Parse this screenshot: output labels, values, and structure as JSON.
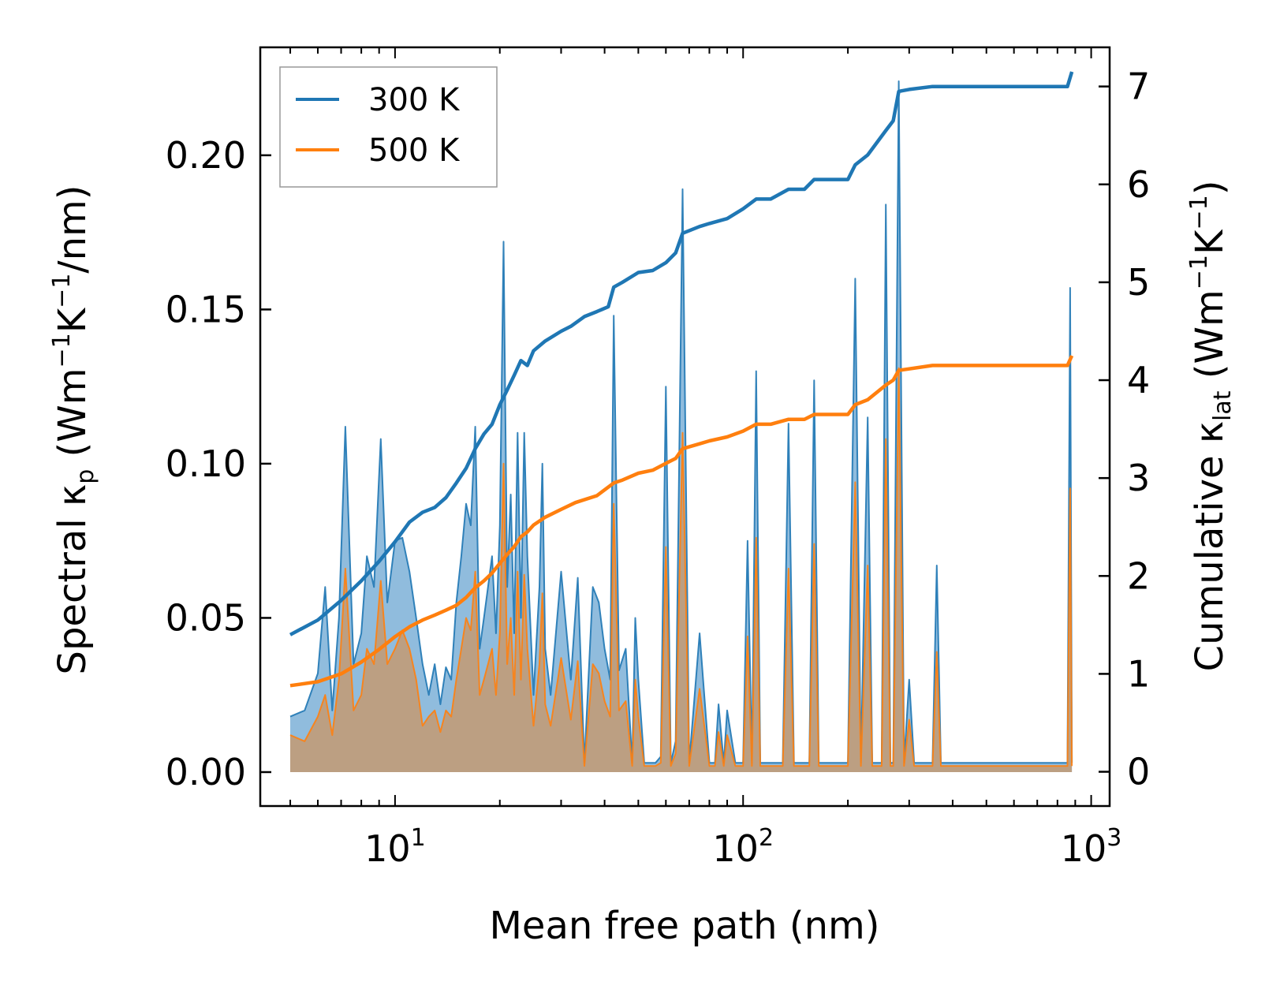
{
  "chart_data": {
    "type": "line",
    "title": "",
    "xlabel": "Mean free path (nm)",
    "xscale": "log",
    "xlim": [
      4.1,
      1130
    ],
    "x_ticks": [
      {
        "value": 10,
        "base": "10",
        "exp": "1"
      },
      {
        "value": 100,
        "base": "10",
        "exp": "2"
      },
      {
        "value": 1000,
        "base": "10",
        "exp": "3"
      }
    ],
    "ylabel_left": {
      "prefix": "Spectral κ",
      "sub": "p",
      "middle": " (Wm",
      "sup1": "−1",
      "k": "K",
      "sup2": "−1",
      "suffix": "/nm)"
    },
    "ylim_left": [
      -0.011,
      0.235
    ],
    "yticks_left": [
      "0.00",
      "0.05",
      "0.10",
      "0.15",
      "0.20"
    ],
    "ylabel_right": {
      "prefix": "Cumulative κ",
      "sub": "lat",
      "middle": " (Wm",
      "sup1": "−1",
      "k": "K",
      "sup2": "−1",
      "suffix": ")"
    },
    "ylim_right": [
      -0.35,
      7.4
    ],
    "yticks_right": [
      "0",
      "1",
      "2",
      "3",
      "4",
      "5",
      "6",
      "7"
    ],
    "legend": {
      "position": "top-left",
      "entries": [
        "300 K",
        "500 K"
      ]
    },
    "colors": {
      "300 K": "#1f77b4",
      "500 K": "#ff7f0e",
      "fill_300": "#8ab8db",
      "fill_500": "#c49a72"
    },
    "spectral": {
      "300 K": [
        [
          5,
          0.018
        ],
        [
          5.5,
          0.02
        ],
        [
          6,
          0.032
        ],
        [
          6.3,
          0.06
        ],
        [
          6.6,
          0.02
        ],
        [
          6.9,
          0.05
        ],
        [
          7.2,
          0.112
        ],
        [
          7.6,
          0.035
        ],
        [
          8,
          0.045
        ],
        [
          8.3,
          0.07
        ],
        [
          8.7,
          0.06
        ],
        [
          9.1,
          0.108
        ],
        [
          9.5,
          0.055
        ],
        [
          10,
          0.075
        ],
        [
          10.5,
          0.076
        ],
        [
          11,
          0.065
        ],
        [
          11.5,
          0.05
        ],
        [
          12,
          0.035
        ],
        [
          12.5,
          0.025
        ],
        [
          13,
          0.035
        ],
        [
          13.5,
          0.022
        ],
        [
          14,
          0.034
        ],
        [
          14.5,
          0.03
        ],
        [
          15,
          0.055
        ],
        [
          15.5,
          0.07
        ],
        [
          16,
          0.087
        ],
        [
          16.5,
          0.08
        ],
        [
          17,
          0.112
        ],
        [
          17.5,
          0.04
        ],
        [
          18,
          0.05
        ],
        [
          18.5,
          0.06
        ],
        [
          19,
          0.07
        ],
        [
          19.5,
          0.045
        ],
        [
          20,
          0.08
        ],
        [
          20.5,
          0.172
        ],
        [
          21,
          0.06
        ],
        [
          21.5,
          0.09
        ],
        [
          22,
          0.045
        ],
        [
          22.5,
          0.11
        ],
        [
          23,
          0.05
        ],
        [
          23.5,
          0.11
        ],
        [
          24,
          0.07
        ],
        [
          25,
          0.025
        ],
        [
          26,
          0.06
        ],
        [
          26.5,
          0.1
        ],
        [
          27,
          0.04
        ],
        [
          28,
          0.025
        ],
        [
          30,
          0.065
        ],
        [
          32,
          0.03
        ],
        [
          33.5,
          0.063
        ],
        [
          35,
          0.003
        ],
        [
          37,
          0.06
        ],
        [
          38.5,
          0.055
        ],
        [
          40,
          0.04
        ],
        [
          41.5,
          0.03
        ],
        [
          42.5,
          0.148
        ],
        [
          44,
          0.033
        ],
        [
          46,
          0.04
        ],
        [
          48,
          0.003
        ],
        [
          49,
          0.05
        ],
        [
          50,
          0.03
        ],
        [
          52,
          0.003
        ],
        [
          54,
          0.003
        ],
        [
          56,
          0.003
        ],
        [
          58,
          0.005
        ],
        [
          60,
          0.125
        ],
        [
          62,
          0.003
        ],
        [
          64,
          0.01
        ],
        [
          67,
          0.189
        ],
        [
          70,
          0.003
        ],
        [
          75,
          0.045
        ],
        [
          80,
          0.003
        ],
        [
          83,
          0.003
        ],
        [
          85,
          0.022
        ],
        [
          88,
          0.003
        ],
        [
          90,
          0.02
        ],
        [
          95,
          0.003
        ],
        [
          100,
          0.003
        ],
        [
          103,
          0.075
        ],
        [
          106,
          0.003
        ],
        [
          109,
          0.13
        ],
        [
          112,
          0.003
        ],
        [
          115,
          0.003
        ],
        [
          120,
          0.003
        ],
        [
          130,
          0.003
        ],
        [
          135,
          0.113
        ],
        [
          140,
          0.003
        ],
        [
          150,
          0.003
        ],
        [
          155,
          0.003
        ],
        [
          160,
          0.127
        ],
        [
          165,
          0.003
        ],
        [
          170,
          0.003
        ],
        [
          200,
          0.003
        ],
        [
          210,
          0.16
        ],
        [
          218,
          0.003
        ],
        [
          228,
          0.115
        ],
        [
          235,
          0.003
        ],
        [
          250,
          0.003
        ],
        [
          257,
          0.184
        ],
        [
          265,
          0.003
        ],
        [
          270,
          0.003
        ],
        [
          280,
          0.224
        ],
        [
          290,
          0.003
        ],
        [
          300,
          0.03
        ],
        [
          310,
          0.003
        ],
        [
          350,
          0.003
        ],
        [
          360,
          0.067
        ],
        [
          370,
          0.003
        ],
        [
          800,
          0.003
        ],
        [
          855,
          0.003
        ],
        [
          870,
          0.157
        ],
        [
          880,
          0.003
        ]
      ],
      "500 K": [
        [
          5,
          0.012
        ],
        [
          5.5,
          0.01
        ],
        [
          6,
          0.018
        ],
        [
          6.3,
          0.025
        ],
        [
          6.6,
          0.012
        ],
        [
          6.9,
          0.03
        ],
        [
          7.2,
          0.066
        ],
        [
          7.6,
          0.02
        ],
        [
          8,
          0.025
        ],
        [
          8.3,
          0.04
        ],
        [
          8.7,
          0.035
        ],
        [
          9.1,
          0.062
        ],
        [
          9.5,
          0.035
        ],
        [
          10,
          0.04
        ],
        [
          10.5,
          0.046
        ],
        [
          11,
          0.04
        ],
        [
          11.5,
          0.03
        ],
        [
          12,
          0.015
        ],
        [
          12.5,
          0.018
        ],
        [
          13,
          0.02
        ],
        [
          13.5,
          0.013
        ],
        [
          14,
          0.02
        ],
        [
          14.5,
          0.018
        ],
        [
          15,
          0.03
        ],
        [
          15.5,
          0.04
        ],
        [
          16,
          0.05
        ],
        [
          16.5,
          0.046
        ],
        [
          17,
          0.065
        ],
        [
          17.5,
          0.025
        ],
        [
          18,
          0.03
        ],
        [
          18.5,
          0.035
        ],
        [
          19,
          0.04
        ],
        [
          19.5,
          0.025
        ],
        [
          20,
          0.045
        ],
        [
          20.5,
          0.1
        ],
        [
          21,
          0.035
        ],
        [
          21.5,
          0.05
        ],
        [
          22,
          0.025
        ],
        [
          22.5,
          0.065
        ],
        [
          23,
          0.03
        ],
        [
          23.5,
          0.064
        ],
        [
          24,
          0.04
        ],
        [
          25,
          0.015
        ],
        [
          26,
          0.035
        ],
        [
          26.5,
          0.058
        ],
        [
          27,
          0.022
        ],
        [
          28,
          0.015
        ],
        [
          30,
          0.037
        ],
        [
          32,
          0.017
        ],
        [
          33.5,
          0.036
        ],
        [
          35,
          0.002
        ],
        [
          37,
          0.035
        ],
        [
          38.5,
          0.032
        ],
        [
          40,
          0.023
        ],
        [
          41.5,
          0.018
        ],
        [
          42.5,
          0.087
        ],
        [
          44,
          0.02
        ],
        [
          46,
          0.023
        ],
        [
          48,
          0.002
        ],
        [
          49,
          0.03
        ],
        [
          50,
          0.018
        ],
        [
          52,
          0.002
        ],
        [
          54,
          0.002
        ],
        [
          56,
          0.002
        ],
        [
          58,
          0.003
        ],
        [
          60,
          0.073
        ],
        [
          62,
          0.002
        ],
        [
          64,
          0.006
        ],
        [
          67,
          0.11
        ],
        [
          70,
          0.002
        ],
        [
          75,
          0.027
        ],
        [
          80,
          0.002
        ],
        [
          83,
          0.002
        ],
        [
          85,
          0.013
        ],
        [
          88,
          0.002
        ],
        [
          90,
          0.012
        ],
        [
          95,
          0.002
        ],
        [
          100,
          0.002
        ],
        [
          103,
          0.044
        ],
        [
          106,
          0.002
        ],
        [
          109,
          0.076
        ],
        [
          112,
          0.002
        ],
        [
          115,
          0.002
        ],
        [
          120,
          0.002
        ],
        [
          130,
          0.002
        ],
        [
          135,
          0.066
        ],
        [
          140,
          0.002
        ],
        [
          150,
          0.002
        ],
        [
          155,
          0.002
        ],
        [
          160,
          0.074
        ],
        [
          165,
          0.002
        ],
        [
          170,
          0.002
        ],
        [
          200,
          0.002
        ],
        [
          210,
          0.094
        ],
        [
          218,
          0.002
        ],
        [
          228,
          0.067
        ],
        [
          235,
          0.002
        ],
        [
          250,
          0.002
        ],
        [
          257,
          0.108
        ],
        [
          265,
          0.002
        ],
        [
          270,
          0.002
        ],
        [
          280,
          0.131
        ],
        [
          290,
          0.002
        ],
        [
          300,
          0.017
        ],
        [
          310,
          0.002
        ],
        [
          350,
          0.002
        ],
        [
          360,
          0.039
        ],
        [
          370,
          0.002
        ],
        [
          800,
          0.002
        ],
        [
          855,
          0.002
        ],
        [
          870,
          0.092
        ],
        [
          880,
          0.002
        ]
      ]
    },
    "cumulative": {
      "300 K": [
        [
          5,
          1.4
        ],
        [
          6,
          1.55
        ],
        [
          7,
          1.75
        ],
        [
          8,
          1.95
        ],
        [
          9,
          2.15
        ],
        [
          10,
          2.35
        ],
        [
          11,
          2.55
        ],
        [
          12,
          2.65
        ],
        [
          13,
          2.7
        ],
        [
          14,
          2.8
        ],
        [
          15,
          2.95
        ],
        [
          16,
          3.1
        ],
        [
          17,
          3.3
        ],
        [
          18,
          3.45
        ],
        [
          19,
          3.55
        ],
        [
          20,
          3.75
        ],
        [
          21,
          3.9
        ],
        [
          22,
          4.05
        ],
        [
          23,
          4.2
        ],
        [
          24,
          4.15
        ],
        [
          25,
          4.3
        ],
        [
          27,
          4.4
        ],
        [
          30,
          4.5
        ],
        [
          32,
          4.55
        ],
        [
          35,
          4.65
        ],
        [
          38,
          4.7
        ],
        [
          41,
          4.75
        ],
        [
          42.5,
          4.95
        ],
        [
          45,
          5.0
        ],
        [
          50,
          5.1
        ],
        [
          55,
          5.12
        ],
        [
          60,
          5.2
        ],
        [
          64,
          5.3
        ],
        [
          67,
          5.5
        ],
        [
          75,
          5.57
        ],
        [
          80,
          5.6
        ],
        [
          90,
          5.65
        ],
        [
          100,
          5.75
        ],
        [
          109,
          5.85
        ],
        [
          120,
          5.85
        ],
        [
          135,
          5.95
        ],
        [
          150,
          5.95
        ],
        [
          160,
          6.05
        ],
        [
          200,
          6.05
        ],
        [
          210,
          6.2
        ],
        [
          228,
          6.3
        ],
        [
          257,
          6.55
        ],
        [
          270,
          6.65
        ],
        [
          280,
          6.95
        ],
        [
          300,
          6.97
        ],
        [
          350,
          7.0
        ],
        [
          800,
          7.0
        ],
        [
          855,
          7.0
        ],
        [
          880,
          7.15
        ]
      ],
      "500 K": [
        [
          5,
          0.88
        ],
        [
          6,
          0.92
        ],
        [
          7,
          1.0
        ],
        [
          8,
          1.12
        ],
        [
          9,
          1.25
        ],
        [
          10,
          1.38
        ],
        [
          11,
          1.48
        ],
        [
          12,
          1.55
        ],
        [
          13,
          1.6
        ],
        [
          14,
          1.65
        ],
        [
          15,
          1.7
        ],
        [
          16,
          1.78
        ],
        [
          17,
          1.88
        ],
        [
          18,
          1.95
        ],
        [
          19,
          2.03
        ],
        [
          20,
          2.13
        ],
        [
          21,
          2.22
        ],
        [
          22,
          2.3
        ],
        [
          23,
          2.4
        ],
        [
          24,
          2.45
        ],
        [
          25,
          2.52
        ],
        [
          27,
          2.6
        ],
        [
          30,
          2.68
        ],
        [
          33,
          2.75
        ],
        [
          38,
          2.82
        ],
        [
          42.5,
          2.95
        ],
        [
          45,
          2.98
        ],
        [
          50,
          3.05
        ],
        [
          55,
          3.08
        ],
        [
          60,
          3.15
        ],
        [
          64,
          3.2
        ],
        [
          67,
          3.3
        ],
        [
          75,
          3.35
        ],
        [
          80,
          3.38
        ],
        [
          90,
          3.42
        ],
        [
          100,
          3.48
        ],
        [
          109,
          3.55
        ],
        [
          120,
          3.55
        ],
        [
          135,
          3.6
        ],
        [
          150,
          3.6
        ],
        [
          160,
          3.65
        ],
        [
          200,
          3.65
        ],
        [
          210,
          3.75
        ],
        [
          228,
          3.8
        ],
        [
          257,
          3.95
        ],
        [
          270,
          4.0
        ],
        [
          280,
          4.1
        ],
        [
          350,
          4.15
        ],
        [
          800,
          4.15
        ],
        [
          855,
          4.15
        ],
        [
          880,
          4.25
        ]
      ]
    }
  }
}
